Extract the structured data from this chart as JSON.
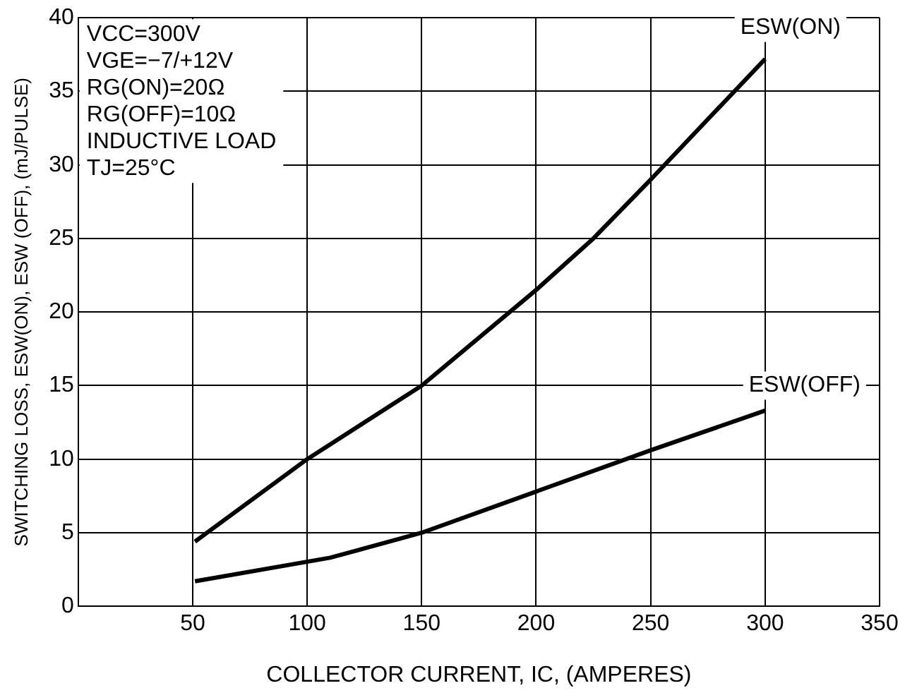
{
  "chart_data": {
    "type": "line",
    "xlabel": "COLLECTOR CURRENT, IC, (AMPERES)",
    "ylabel": "SWITCHING LOSS, ESW(ON), ESW (OFF), (mJ/PULSE)",
    "annotations": [
      "VCC=300V",
      "VGE=−7/+12V",
      "RG(ON)=20Ω",
      "RG(OFF)=10Ω",
      "INDUCTIVE LOAD",
      "TJ=25°C"
    ],
    "series": [
      {
        "name": "ESW(ON)",
        "color": "#000000",
        "x": [
          51,
          100,
          150,
          200,
          225,
          250,
          300
        ],
        "values": [
          4.4,
          10,
          15,
          21.5,
          25,
          29,
          37.2
        ]
      },
      {
        "name": "ESW(OFF)",
        "color": "#000000",
        "x": [
          51,
          110,
          150,
          200,
          250,
          300
        ],
        "values": [
          1.7,
          3.3,
          5,
          7.8,
          10.6,
          13.3
        ]
      }
    ],
    "xlim": [
      0,
      350
    ],
    "xticks": [
      50,
      100,
      150,
      200,
      250,
      300,
      350
    ],
    "ylim": [
      0,
      40
    ],
    "yticks": [
      0,
      5,
      10,
      15,
      20,
      25,
      30,
      35,
      40
    ],
    "grid": true,
    "legend": false,
    "marker": "none",
    "line_style": "solid"
  }
}
